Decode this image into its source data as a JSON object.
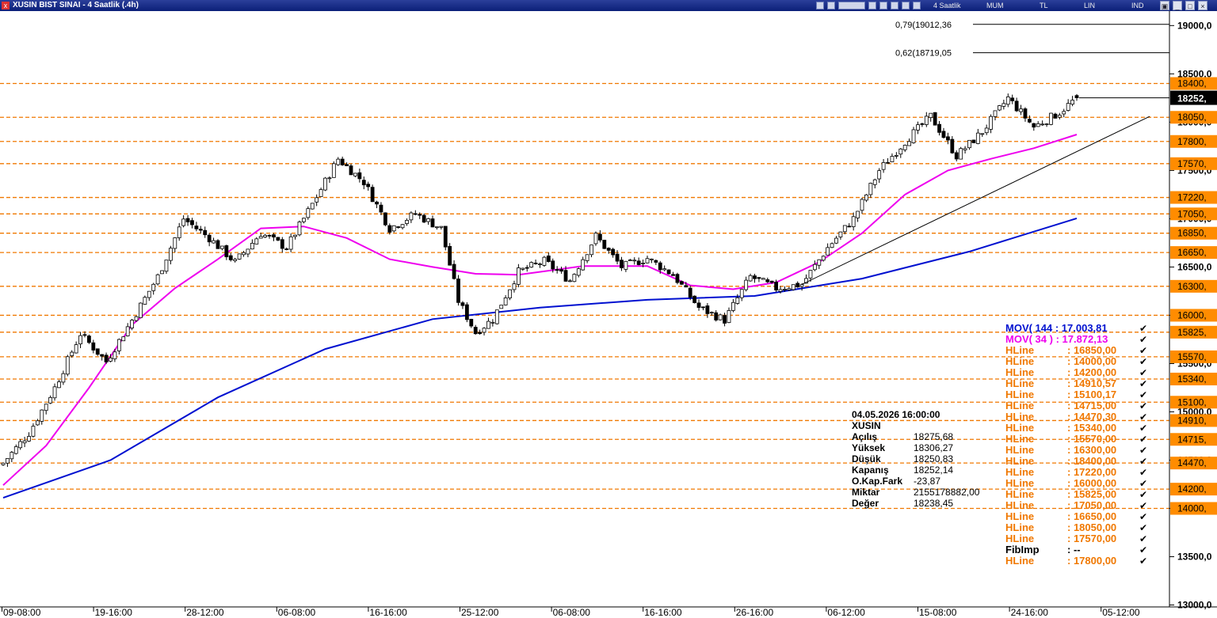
{
  "window": {
    "title": "XUSIN BIST SINAI - 4 Saatlik (.4h)",
    "app_icon": "x-icon",
    "toolbar": {
      "period": "4 Saatlik",
      "chart_style": "MUM",
      "currency": "TL",
      "scale": "LIN",
      "mode": "IND"
    }
  },
  "colors": {
    "hline": "#f07800",
    "mov144": "#0010d0",
    "mov34": "#ee00ee",
    "price_box": "#000000",
    "hline_label_bg": "#ff8c00"
  },
  "chart_data": {
    "type": "candlestick",
    "symbol": "XUSIN",
    "ylim": [
      12980,
      19150
    ],
    "y_ticks": [
      {
        "value": 19000,
        "label": "19000,0"
      },
      {
        "value": 18500,
        "label": "18500,0"
      },
      {
        "value": 18000,
        "label": "18000,0"
      },
      {
        "value": 17500,
        "label": "17500,0"
      },
      {
        "value": 17000,
        "label": "17000,0"
      },
      {
        "value": 16500,
        "label": "16500,0"
      },
      {
        "value": 16000,
        "label": "16000,0"
      },
      {
        "value": 15500,
        "label": "15500,0"
      },
      {
        "value": 15000,
        "label": "15000,0"
      },
      {
        "value": 14500,
        "label": "14500,0"
      },
      {
        "value": 14000,
        "label": "14000,0"
      },
      {
        "value": 13500,
        "label": "13500,0"
      },
      {
        "value": 13000,
        "label": "13000,0"
      }
    ],
    "x_labels": [
      "09-08:00",
      "19-16:00",
      "28-12:00",
      "06-08:00",
      "16-16:00",
      "25-12:00",
      "06-08:00",
      "16-16:00",
      "26-16:00",
      "06-12:00",
      "15-08:00",
      "24-16:00",
      "05-12:00"
    ],
    "hlines": [
      {
        "value": 18400,
        "label": "18400,"
      },
      {
        "value": 18050,
        "label": "18050,"
      },
      {
        "value": 17800,
        "label": "17800,"
      },
      {
        "value": 17570,
        "label": "17570,"
      },
      {
        "value": 17220,
        "label": "17220,"
      },
      {
        "value": 17050,
        "label": "17050,"
      },
      {
        "value": 16850,
        "label": "16850,"
      },
      {
        "value": 16650,
        "label": "16650,"
      },
      {
        "value": 16300,
        "label": "16300,"
      },
      {
        "value": 16000,
        "label": "16000,"
      },
      {
        "value": 15825,
        "label": "15825,"
      },
      {
        "value": 15570,
        "label": "15570,"
      },
      {
        "value": 15340,
        "label": "15340,"
      },
      {
        "value": 15100,
        "label": "15100,"
      },
      {
        "value": 14910,
        "label": "14910,"
      },
      {
        "value": 14715,
        "label": "14715,"
      },
      {
        "value": 14470,
        "label": "14470,"
      },
      {
        "value": 14200,
        "label": "14200,"
      },
      {
        "value": 14000,
        "label": "14000,"
      }
    ],
    "current_price": {
      "value": 18252.14,
      "label": "18252,"
    },
    "fib_levels": [
      {
        "value": 19012.36,
        "label": "0,79(19012,36"
      },
      {
        "value": 18719.05,
        "label": "0,62(18719,05"
      }
    ],
    "trendline": {
      "from_x": 186,
      "from_y": 16320,
      "to_x": 267,
      "to_y": 18060
    },
    "ohlc_anchors": [
      [
        0,
        14470
      ],
      [
        6,
        14780
      ],
      [
        12,
        15250
      ],
      [
        18,
        15810
      ],
      [
        24,
        15520
      ],
      [
        30,
        15950
      ],
      [
        36,
        16400
      ],
      [
        42,
        17000
      ],
      [
        48,
        16800
      ],
      [
        54,
        16550
      ],
      [
        60,
        16850
      ],
      [
        66,
        16700
      ],
      [
        72,
        17150
      ],
      [
        78,
        17620
      ],
      [
        84,
        17380
      ],
      [
        90,
        16900
      ],
      [
        96,
        17050
      ],
      [
        102,
        16900
      ],
      [
        106,
        16150
      ],
      [
        110,
        15820
      ],
      [
        114,
        15960
      ],
      [
        120,
        16450
      ],
      [
        126,
        16560
      ],
      [
        132,
        16360
      ],
      [
        138,
        16820
      ],
      [
        144,
        16500
      ],
      [
        150,
        16590
      ],
      [
        156,
        16420
      ],
      [
        162,
        16080
      ],
      [
        168,
        15950
      ],
      [
        174,
        16400
      ],
      [
        180,
        16280
      ],
      [
        186,
        16320
      ],
      [
        192,
        16700
      ],
      [
        198,
        17000
      ],
      [
        204,
        17500
      ],
      [
        210,
        17800
      ],
      [
        216,
        18060
      ],
      [
        222,
        17650
      ],
      [
        228,
        17900
      ],
      [
        234,
        18250
      ],
      [
        240,
        17950
      ],
      [
        246,
        18100
      ],
      [
        250,
        18252
      ]
    ],
    "series": [
      {
        "name": "MOV( 144 : 17.003,81",
        "type": "line",
        "color": "#0010d0",
        "points": [
          [
            0,
            14110
          ],
          [
            25,
            14500
          ],
          [
            50,
            15150
          ],
          [
            75,
            15650
          ],
          [
            100,
            15960
          ],
          [
            125,
            16080
          ],
          [
            150,
            16160
          ],
          [
            175,
            16200
          ],
          [
            200,
            16380
          ],
          [
            225,
            16660
          ],
          [
            250,
            17003.81
          ]
        ]
      },
      {
        "name": "MOV( 34 ) : 17.872,13",
        "type": "line",
        "color": "#ee00ee",
        "points": [
          [
            0,
            14240
          ],
          [
            10,
            14650
          ],
          [
            20,
            15250
          ],
          [
            30,
            15900
          ],
          [
            40,
            16280
          ],
          [
            50,
            16580
          ],
          [
            60,
            16900
          ],
          [
            70,
            16920
          ],
          [
            80,
            16800
          ],
          [
            90,
            16580
          ],
          [
            100,
            16500
          ],
          [
            110,
            16430
          ],
          [
            120,
            16420
          ],
          [
            135,
            16510
          ],
          [
            150,
            16510
          ],
          [
            160,
            16310
          ],
          [
            170,
            16270
          ],
          [
            180,
            16340
          ],
          [
            190,
            16550
          ],
          [
            200,
            16850
          ],
          [
            210,
            17250
          ],
          [
            220,
            17500
          ],
          [
            230,
            17620
          ],
          [
            240,
            17730
          ],
          [
            250,
            17872.13
          ]
        ]
      }
    ]
  },
  "legend": {
    "mov144": "MOV( 144 : 17.003,81",
    "mov34": "MOV( 34 ) : 17.872,13",
    "check": "✔",
    "items": [
      {
        "name": "HLine",
        "value": ": 16850,00"
      },
      {
        "name": "HLine",
        "value": ": 14000,00"
      },
      {
        "name": "HLine",
        "value": ": 14200,00"
      },
      {
        "name": "HLine",
        "value": ": 14910,57"
      },
      {
        "name": "HLine",
        "value": ": 15100,17"
      },
      {
        "name": "HLine",
        "value": ": 14715,00"
      },
      {
        "name": "HLine",
        "value": ": 14470,30"
      },
      {
        "name": "HLine",
        "value": ": 15340,00"
      },
      {
        "name": "HLine",
        "value": ": 15570,00"
      },
      {
        "name": "HLine",
        "value": ": 16300,00"
      },
      {
        "name": "HLine",
        "value": ": 18400,00"
      },
      {
        "name": "HLine",
        "value": ": 17220,00"
      },
      {
        "name": "HLine",
        "value": ": 16000,00"
      },
      {
        "name": "HLine",
        "value": ": 15825,00"
      },
      {
        "name": "HLine",
        "value": ": 17050,00"
      },
      {
        "name": "HLine",
        "value": ": 16650,00"
      },
      {
        "name": "HLine",
        "value": ": 18050,00"
      },
      {
        "name": "HLine",
        "value": ": 17570,00"
      },
      {
        "name": "FibImp",
        "value": ": --",
        "dark": true
      },
      {
        "name": "HLine",
        "value": ": 17800,00"
      }
    ]
  },
  "info": {
    "datetime": "04.05.2026  16:00:00",
    "symbol": "XUSIN",
    "rows": [
      {
        "label": "Açılış",
        "value": "18275,68"
      },
      {
        "label": "Yüksek",
        "value": "18306,27"
      },
      {
        "label": "Düşük",
        "value": "18250,83"
      },
      {
        "label": "Kapanış",
        "value": "18252,14"
      },
      {
        "label": "O.Kap.Fark",
        "value": "-23,87"
      },
      {
        "label": "Miktar",
        "value": "2155178882,00"
      },
      {
        "label": "Değer",
        "value": "18238,45"
      }
    ]
  }
}
